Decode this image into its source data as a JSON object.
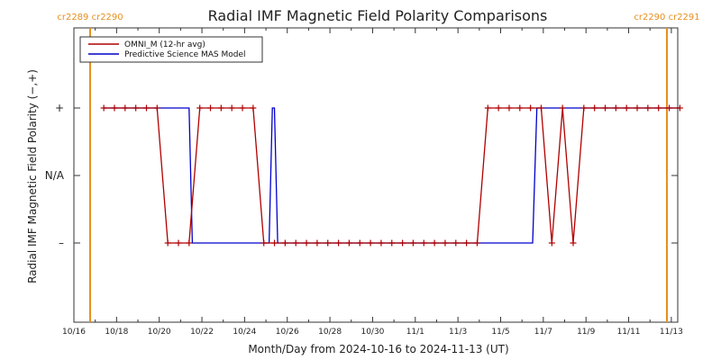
{
  "chart_data": {
    "type": "line",
    "title": "Radial IMF Magnetic Field Polarity Comparisons",
    "xlabel": "Month/Day from 2024-10-16 to 2024-11-13 (UT)",
    "ylabel": "Radial IMF Magnetic Field Polarity (−,+)",
    "x_unit": "days since 2024-10-16",
    "xlim": [
      0,
      28.3
    ],
    "ylim": [
      -2,
      2
    ],
    "x_ticks": [
      {
        "x": 0,
        "label": "10/16"
      },
      {
        "x": 2,
        "label": "10/18"
      },
      {
        "x": 4,
        "label": "10/20"
      },
      {
        "x": 6,
        "label": "10/22"
      },
      {
        "x": 8,
        "label": "10/24"
      },
      {
        "x": 10,
        "label": "10/26"
      },
      {
        "x": 12,
        "label": "10/28"
      },
      {
        "x": 14,
        "label": "10/30"
      },
      {
        "x": 16,
        "label": "11/1"
      },
      {
        "x": 18,
        "label": "11/3"
      },
      {
        "x": 20,
        "label": "11/5"
      },
      {
        "x": 22,
        "label": "11/7"
      },
      {
        "x": 24,
        "label": "11/9"
      },
      {
        "x": 26,
        "label": "11/11"
      },
      {
        "x": 28,
        "label": "11/13"
      }
    ],
    "y_ticks": [
      {
        "y": 1,
        "label": "+"
      },
      {
        "y": 0,
        "label": "N/A"
      },
      {
        "y": -1,
        "label": "–"
      }
    ],
    "legend": {
      "placement": "top-left"
    },
    "series": [
      {
        "name": "OMNI_M (12-hr avg)",
        "color": "#b00000",
        "marker": "+",
        "points": [
          [
            1.4,
            1
          ],
          [
            1.9,
            1
          ],
          [
            2.4,
            1
          ],
          [
            2.9,
            1
          ],
          [
            3.4,
            1
          ],
          [
            3.9,
            1
          ],
          [
            4.4,
            -1
          ],
          [
            4.9,
            -1
          ],
          [
            5.4,
            -1
          ],
          [
            5.9,
            1
          ],
          [
            6.4,
            1
          ],
          [
            6.9,
            1
          ],
          [
            7.4,
            1
          ],
          [
            7.9,
            1
          ],
          [
            8.4,
            1
          ],
          [
            8.9,
            -1
          ],
          [
            9.4,
            -1
          ],
          [
            9.9,
            -1
          ],
          [
            10.4,
            -1
          ],
          [
            10.9,
            -1
          ],
          [
            11.4,
            -1
          ],
          [
            11.9,
            -1
          ],
          [
            12.4,
            -1
          ],
          [
            12.9,
            -1
          ],
          [
            13.4,
            -1
          ],
          [
            13.9,
            -1
          ],
          [
            14.4,
            -1
          ],
          [
            14.9,
            -1
          ],
          [
            15.4,
            -1
          ],
          [
            15.9,
            -1
          ],
          [
            16.4,
            -1
          ],
          [
            16.9,
            -1
          ],
          [
            17.4,
            -1
          ],
          [
            17.9,
            -1
          ],
          [
            18.4,
            -1
          ],
          [
            18.9,
            -1
          ],
          [
            19.4,
            1
          ],
          [
            19.9,
            1
          ],
          [
            20.4,
            1
          ],
          [
            20.9,
            1
          ],
          [
            21.4,
            1
          ],
          [
            21.9,
            1
          ],
          [
            22.4,
            -1
          ],
          [
            22.9,
            1
          ],
          [
            23.4,
            -1
          ],
          [
            23.9,
            1
          ],
          [
            24.4,
            1
          ],
          [
            24.9,
            1
          ],
          [
            25.4,
            1
          ],
          [
            25.9,
            1
          ],
          [
            26.4,
            1
          ],
          [
            26.9,
            1
          ],
          [
            27.4,
            1
          ],
          [
            27.9,
            1
          ],
          [
            28.4,
            1
          ]
        ]
      },
      {
        "name": "Predictive Science MAS Model",
        "color": "#0000cc",
        "points": [
          [
            1.4,
            1
          ],
          [
            5.4,
            1
          ],
          [
            5.55,
            -1
          ],
          [
            9.15,
            -1
          ],
          [
            9.3,
            1
          ],
          [
            9.4,
            1
          ],
          [
            9.55,
            -1
          ],
          [
            21.5,
            -1
          ],
          [
            21.7,
            1
          ],
          [
            28.4,
            1
          ]
        ]
      }
    ],
    "markers": [
      {
        "x": 1.5,
        "color": "#e69020",
        "label": "cr2289 cr2290"
      },
      {
        "x": 29.5,
        "color": "#e69020",
        "label": "cr2290 cr2291"
      }
    ]
  }
}
